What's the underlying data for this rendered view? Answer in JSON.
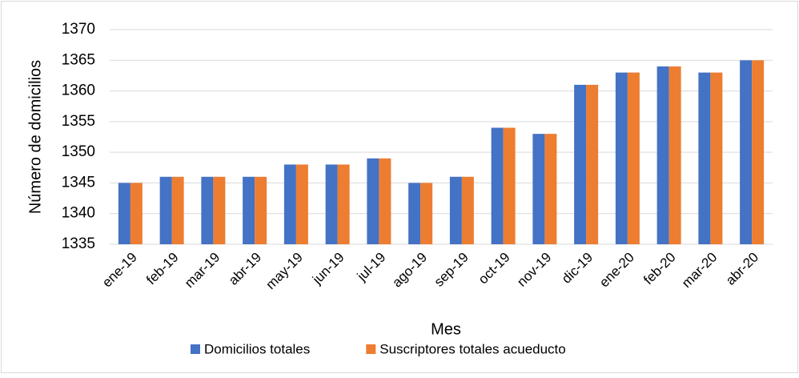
{
  "chart_data": {
    "type": "bar",
    "ylabel": "Número de domicilios",
    "xlabel": "Mes",
    "categories": [
      "ene-19",
      "feb-19",
      "mar-19",
      "abr-19",
      "may-19",
      "jun-19",
      "jul-19",
      "ago-19",
      "sep-19",
      "oct-19",
      "nov-19",
      "dic-19",
      "ene-20",
      "feb-20",
      "mar-20",
      "abr-20"
    ],
    "series": [
      {
        "name": "Domicilios totales",
        "color": "#4472c4",
        "values": [
          1345,
          1346,
          1346,
          1346,
          1348,
          1348,
          1349,
          1345,
          1346,
          1354,
          1353,
          1361,
          1363,
          1364,
          1363,
          1365
        ]
      },
      {
        "name": "Suscriptores totales acueducto",
        "color": "#ed7d31",
        "values": [
          1345,
          1346,
          1346,
          1346,
          1348,
          1348,
          1349,
          1345,
          1346,
          1354,
          1353,
          1361,
          1363,
          1364,
          1363,
          1365
        ]
      }
    ],
    "ylim": [
      1335,
      1370
    ],
    "yticks": [
      1335,
      1340,
      1345,
      1350,
      1355,
      1360,
      1365,
      1370
    ],
    "grid": true,
    "legend": "bottom"
  }
}
